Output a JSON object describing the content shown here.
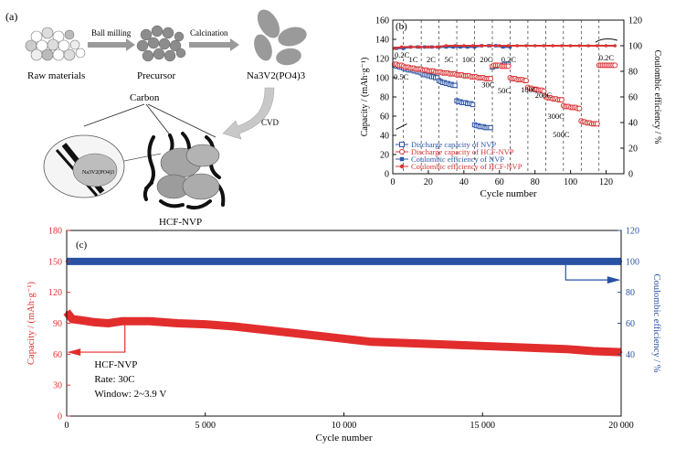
{
  "panel_a": {
    "label": "(a)",
    "step1": "Ball milling",
    "step2": "Calcination",
    "step3": "CVD",
    "raw": "Raw materials",
    "precursor": "Precursor",
    "product": "Na3V2(PO4)3",
    "carbon": "Carbon",
    "inset": "Na3V2(PO4)3",
    "composite": "HCF-NVP"
  },
  "chart_data": [
    {
      "type": "scatter",
      "panel": "(b)",
      "xlabel": "Cycle number",
      "ylabel": "Capacity / (mAh·g⁻¹)",
      "y2label": "Coulombic efficiency / %",
      "xlim": [
        0,
        130
      ],
      "ylim": [
        0,
        160
      ],
      "y2lim": [
        0,
        120
      ],
      "xticks": [
        0,
        20,
        40,
        60,
        80,
        100,
        120
      ],
      "yticks": [
        0,
        20,
        40,
        60,
        80,
        100,
        120,
        140,
        160
      ],
      "y2ticks": [
        0,
        20,
        40,
        60,
        80,
        100,
        120
      ],
      "legend_position": "bottom-left",
      "rate_labels": [
        "0.2C",
        "1C",
        "2C",
        "5C",
        "10C",
        "20C",
        "0.2C",
        "0.5C",
        "30C",
        "50C",
        "100C",
        "200C",
        "300C",
        "500C",
        "0.2C"
      ],
      "dividers": [
        6,
        16,
        26,
        36,
        46,
        56,
        66,
        76,
        86,
        96,
        106,
        116
      ],
      "series": [
        {
          "name": "Discharge capacity of NVP",
          "axis": "left",
          "color": "#2f56a8",
          "marker": "open-square",
          "x": [
            1,
            2,
            3,
            4,
            5,
            6,
            7,
            8,
            9,
            10,
            11,
            12,
            13,
            14,
            15,
            16,
            17,
            18,
            19,
            20,
            21,
            22,
            23,
            24,
            25,
            26,
            27,
            28,
            29,
            30,
            31,
            32,
            33,
            34,
            35,
            36,
            37,
            38,
            39,
            40,
            41,
            42,
            43,
            44,
            45,
            46,
            47,
            48,
            49,
            50,
            51,
            52,
            53,
            54,
            55,
            56,
            57,
            58,
            59,
            60,
            61,
            62,
            63,
            64,
            65
          ],
          "y": [
            113,
            112,
            112,
            111,
            111,
            110,
            109,
            109,
            108,
            108,
            108,
            107,
            107,
            106,
            106,
            105,
            104,
            103,
            103,
            102,
            102,
            101,
            101,
            100,
            100,
            97,
            96,
            95,
            95,
            94,
            94,
            93,
            93,
            92,
            92,
            76,
            75,
            75,
            74,
            74,
            74,
            73,
            73,
            73,
            72,
            51,
            50,
            50,
            49,
            49,
            49,
            48,
            48,
            48,
            48,
            111,
            112,
            112,
            113,
            113,
            113,
            113,
            114,
            114,
            114
          ]
        },
        {
          "name": "Discharge capacity of HCF-NVP",
          "axis": "left",
          "color": "#d83434",
          "marker": "open-circle",
          "x": [
            1,
            2,
            3,
            4,
            5,
            6,
            7,
            8,
            9,
            10,
            11,
            12,
            13,
            14,
            15,
            16,
            17,
            18,
            19,
            20,
            21,
            22,
            23,
            24,
            25,
            26,
            27,
            28,
            29,
            30,
            31,
            32,
            33,
            34,
            35,
            36,
            37,
            38,
            39,
            40,
            41,
            42,
            43,
            44,
            45,
            46,
            47,
            48,
            49,
            50,
            51,
            52,
            53,
            54,
            55,
            56,
            57,
            58,
            59,
            60,
            61,
            62,
            63,
            64,
            65,
            66,
            67,
            68,
            69,
            70,
            71,
            72,
            73,
            74,
            75,
            76,
            77,
            78,
            79,
            80,
            81,
            82,
            83,
            84,
            85,
            86,
            87,
            88,
            89,
            90,
            91,
            92,
            93,
            94,
            95,
            96,
            97,
            98,
            99,
            100,
            101,
            102,
            103,
            104,
            105,
            106,
            107,
            108,
            109,
            110,
            111,
            112,
            113,
            114,
            115,
            116,
            117,
            118,
            119,
            120,
            121,
            122,
            123,
            124,
            125
          ],
          "y": [
            114,
            114,
            113,
            113,
            113,
            112,
            111,
            111,
            111,
            110,
            110,
            110,
            109,
            109,
            109,
            109,
            108,
            108,
            108,
            107,
            107,
            107,
            107,
            106,
            106,
            106,
            106,
            105,
            105,
            105,
            105,
            104,
            104,
            104,
            104,
            103,
            103,
            103,
            103,
            102,
            102,
            102,
            102,
            101,
            101,
            101,
            101,
            100,
            100,
            100,
            100,
            99,
            99,
            99,
            99,
            112,
            113,
            113,
            113,
            113,
            112,
            112,
            112,
            112,
            112,
            100,
            99,
            99,
            99,
            98,
            98,
            98,
            98,
            97,
            97,
            90,
            89,
            89,
            88,
            88,
            88,
            87,
            87,
            87,
            86,
            80,
            79,
            79,
            79,
            78,
            78,
            78,
            77,
            77,
            77,
            71,
            70,
            70,
            70,
            69,
            69,
            69,
            69,
            68,
            68,
            55,
            54,
            54,
            53,
            53,
            53,
            52,
            52,
            52,
            52,
            113,
            113,
            113,
            113,
            113,
            113,
            113,
            113,
            113,
            113
          ]
        },
        {
          "name": "Coulombic efficiency of NVP",
          "axis": "right",
          "color": "#2f56a8",
          "marker": "filled-square",
          "x": [
            2,
            6,
            10,
            14,
            18,
            22,
            26,
            30,
            34,
            38,
            42,
            46,
            50,
            54,
            58,
            62,
            66
          ],
          "y": [
            98,
            98,
            99,
            99,
            99,
            99,
            99,
            99,
            99,
            99,
            99,
            99,
            100,
            100,
            100,
            99,
            99
          ]
        },
        {
          "name": "Coulombic efficiency of HCF-NVP",
          "axis": "right",
          "color": "#d83434",
          "marker": "filled-circle",
          "x": [
            1,
            5,
            10,
            15,
            20,
            25,
            30,
            35,
            40,
            45,
            50,
            55,
            60,
            65,
            70,
            75,
            80,
            85,
            90,
            95,
            100,
            105,
            110,
            115,
            120,
            125
          ],
          "y": [
            98,
            99,
            99,
            99,
            99,
            99,
            100,
            100,
            100,
            100,
            100,
            100,
            100,
            100,
            100,
            100,
            100,
            100,
            100,
            100,
            100,
            100,
            100,
            100,
            100,
            100
          ]
        }
      ]
    },
    {
      "type": "scatter",
      "panel": "(c)",
      "xlabel": "Cycle number",
      "ylabel": "Capacity / (mAh·g⁻¹)",
      "y2label": "Coulombic efficiency / %",
      "xlim": [
        0,
        20000
      ],
      "ylim": [
        0,
        180
      ],
      "y2lim": [
        0,
        120
      ],
      "xticks": [
        0,
        5000,
        10000,
        15000,
        20000
      ],
      "xticklabels": [
        "0",
        "5 000",
        "10 000",
        "15 000",
        "20 000"
      ],
      "yticks": [
        0,
        30,
        60,
        90,
        120,
        150,
        180
      ],
      "y2ticks": [
        40,
        60,
        80,
        100,
        120
      ],
      "annotation": [
        "HCF-NVP",
        "Rate: 30C",
        "Window: 2~3.9 V"
      ],
      "series": [
        {
          "name": "Capacity",
          "axis": "left",
          "color": "#e22d2d",
          "x": [
            0,
            200,
            500,
            1000,
            1500,
            2000,
            3000,
            4000,
            5000,
            6000,
            7000,
            8000,
            9000,
            10000,
            11000,
            12000,
            13000,
            14000,
            15000,
            16000,
            17000,
            18000,
            19000,
            20000
          ],
          "y": [
            101,
            94,
            93,
            91,
            90,
            92,
            92,
            90,
            89,
            87,
            84,
            81,
            78,
            75,
            72,
            71,
            70,
            69,
            68,
            67,
            66,
            65,
            63,
            62
          ]
        },
        {
          "name": "Coulombic efficiency",
          "axis": "right",
          "color": "#2a52a4",
          "x": [
            0,
            1000,
            2000,
            3000,
            4000,
            5000,
            6000,
            7000,
            8000,
            9000,
            10000,
            11000,
            12000,
            13000,
            14000,
            15000,
            16000,
            17000,
            18000,
            19000,
            20000
          ],
          "y": [
            100,
            100,
            100,
            100,
            100,
            100,
            100,
            100,
            100,
            100,
            100,
            100,
            100,
            100,
            100,
            100,
            100,
            100,
            100,
            100,
            100
          ]
        }
      ]
    }
  ]
}
